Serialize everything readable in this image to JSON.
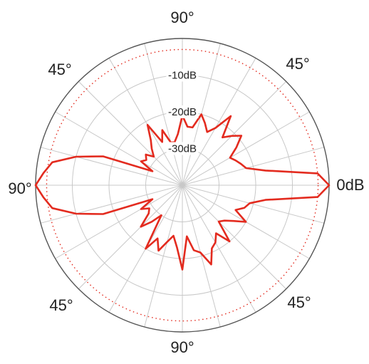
{
  "chart_data": {
    "type": "line",
    "subtype": "polar",
    "title": "",
    "radial_axis": {
      "unit": "dB",
      "range": [
        -40,
        0
      ],
      "rings": [
        0,
        -10,
        -20,
        -30
      ],
      "ring_labels": [
        "0dB",
        "-10dB",
        "-20dB",
        "-30dB"
      ],
      "dotted_reference_ring": -3
    },
    "angular_axis": {
      "gridline_step_deg": 15,
      "labels": [
        {
          "text": "0dB",
          "position": "right"
        },
        {
          "text": "45°",
          "position": "upper-right"
        },
        {
          "text": "90°",
          "position": "top"
        },
        {
          "text": "45°",
          "position": "upper-left"
        },
        {
          "text": "90°",
          "position": "left"
        },
        {
          "text": "45°",
          "position": "lower-left"
        },
        {
          "text": "90°",
          "position": "bottom"
        },
        {
          "text": "45°",
          "position": "lower-right"
        }
      ]
    },
    "grid": true,
    "colors": {
      "series": "#e32b1f",
      "grid": "#c8c8c8",
      "outer_ring": "#555555",
      "reference_ring": "#e32b1f"
    },
    "series": [
      {
        "angles_deg": [
          0,
          5,
          10,
          15,
          20,
          25,
          30,
          35,
          40,
          45,
          50,
          55,
          60,
          65,
          70,
          75,
          80,
          85,
          90,
          95,
          100,
          105,
          110,
          115,
          120,
          125,
          130,
          135,
          140,
          145,
          150,
          155,
          160,
          165,
          170,
          175,
          180,
          185,
          190,
          195,
          200,
          205,
          210,
          215,
          220,
          225,
          230,
          235,
          240,
          245,
          250,
          255,
          260,
          265,
          270,
          275,
          280,
          285,
          290,
          295,
          300,
          305,
          310,
          315,
          320,
          325,
          330,
          335,
          340,
          345,
          350,
          355
        ],
        "values_db": [
          0,
          -3,
          -17,
          -22,
          -23,
          -24,
          -25,
          -22,
          -19,
          -21,
          -23,
          -17,
          -22,
          -24,
          -22,
          -20,
          -24,
          -24,
          -21,
          -26,
          -28,
          -28,
          -24,
          -27,
          -21,
          -25,
          -27,
          -29,
          -27,
          -28,
          -27,
          -31,
          -17,
          -10,
          -4,
          -2,
          0,
          -2,
          -4,
          -10,
          -17,
          -31,
          -27,
          -29,
          -28,
          -24,
          -27,
          -30,
          -20,
          -24,
          -21,
          -24,
          -26,
          -23,
          -17,
          -26,
          -22,
          -21,
          -17,
          -21,
          -22,
          -24,
          -20,
          -26,
          -25,
          -23,
          -20,
          -24,
          -22,
          -21,
          -17,
          -3
        ]
      }
    ]
  }
}
